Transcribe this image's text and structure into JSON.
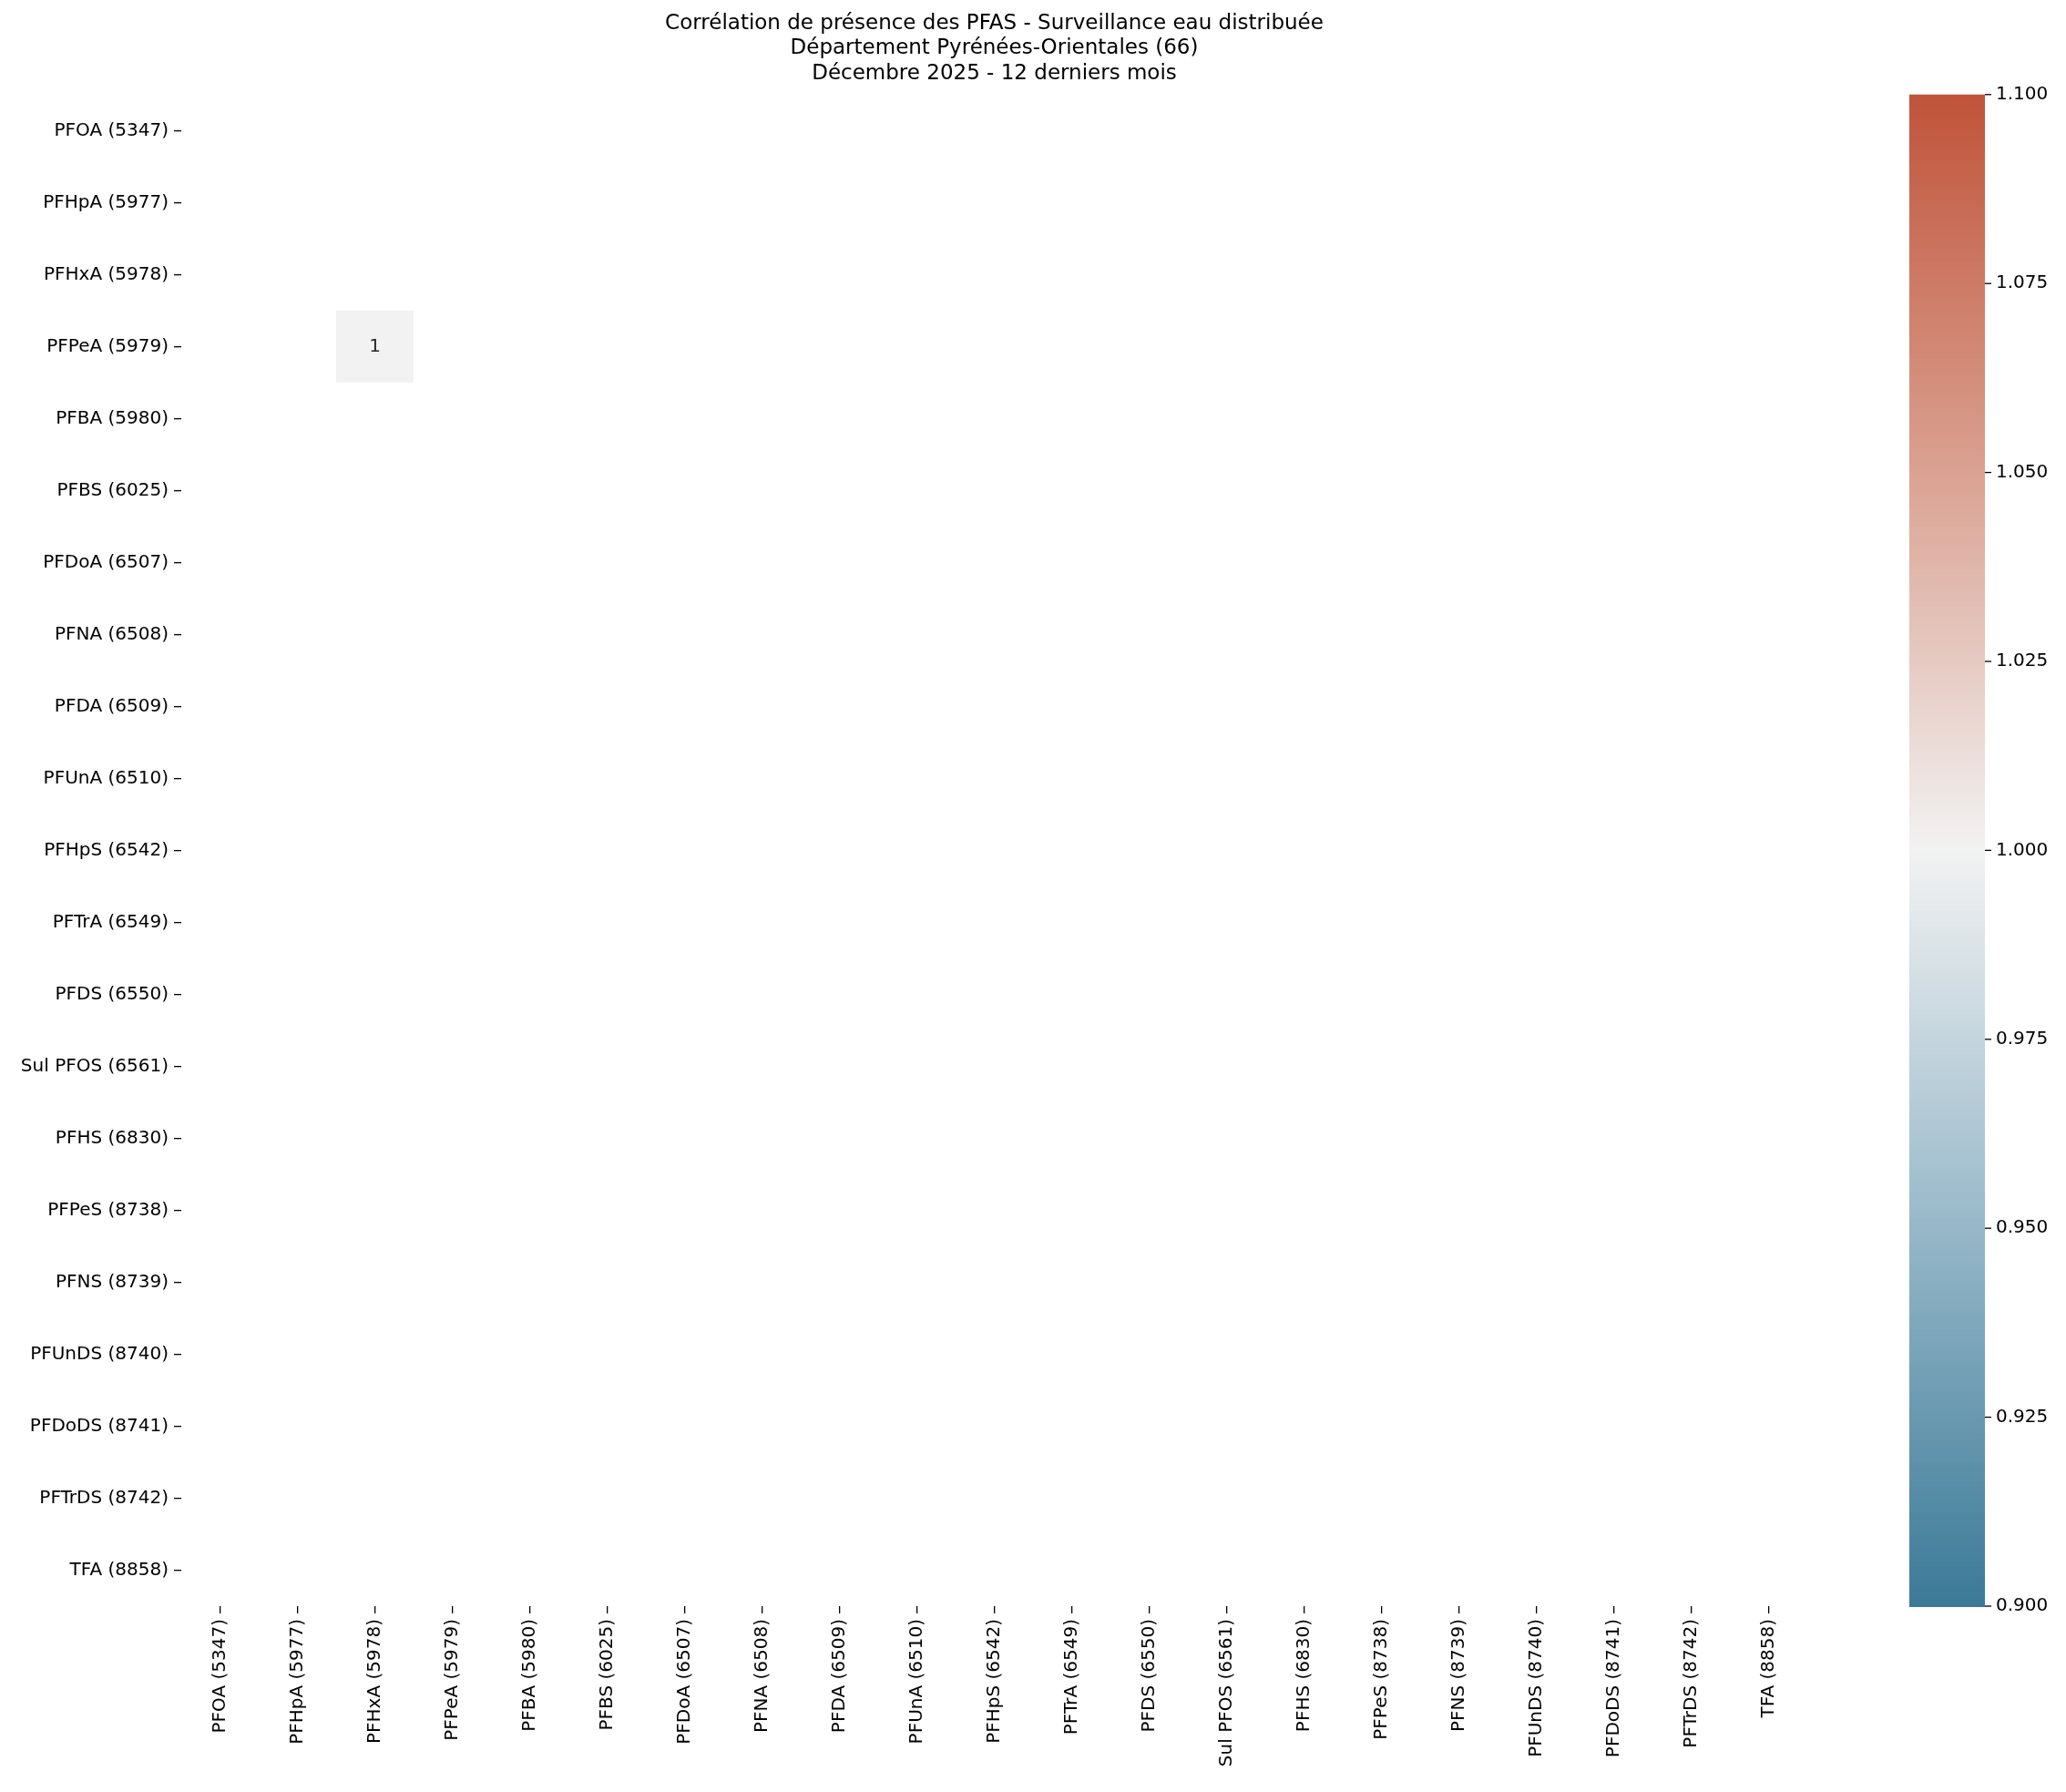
{
  "chart_data": {
    "type": "heatmap",
    "title": "Corrélation de présence des PFAS - Surveillance eau distribuée\nDépartement Pyrénées-Orientales (66)\nDécembre 2025 - 12 derniers mois",
    "categories": [
      "PFOA (5347)",
      "PFHpA (5977)",
      "PFHxA (5978)",
      "PFPeA (5979)",
      "PFBA (5980)",
      "PFBS (6025)",
      "PFDoA (6507)",
      "PFNA (6508)",
      "PFDA (6509)",
      "PFUnA (6510)",
      "PFHpS (6542)",
      "PFTrA (6549)",
      "PFDS (6550)",
      "Sul PFOS (6561)",
      "PFHS (6830)",
      "PFPeS (8738)",
      "PFNS (8739)",
      "PFUnDS (8740)",
      "PFDoDS (8741)",
      "PFTrDS (8742)",
      "TFA (8858)"
    ],
    "y_categories": [
      "PFOA (5347)",
      "PFHpA (5977)",
      "PFHxA (5978)",
      "PFPeA (5979)",
      "PFBA (5980)",
      "PFBS (6025)",
      "PFDoA (6507)",
      "PFNA (6508)",
      "PFDA (6509)",
      "PFUnA (6510)",
      "PFHpS (6542)",
      "PFTrA (6549)",
      "PFDS (6550)",
      "Sul PFOS (6561)",
      "PFHS (6830)",
      "PFPeS (8738)",
      "PFNS (8739)",
      "PFUnDS (8740)",
      "PFDoDS (8741)",
      "PFTrDS (8742)",
      "TFA (8858)"
    ],
    "cells": [
      [
        null,
        null,
        null,
        null,
        null,
        null,
        null,
        null,
        null,
        null,
        null,
        null,
        null,
        null,
        null,
        null,
        null,
        null,
        null,
        null,
        null
      ],
      [
        null,
        null,
        null,
        null,
        null,
        null,
        null,
        null,
        null,
        null,
        null,
        null,
        null,
        null,
        null,
        null,
        null,
        null,
        null,
        null,
        null
      ],
      [
        null,
        null,
        null,
        null,
        null,
        null,
        null,
        null,
        null,
        null,
        null,
        null,
        null,
        null,
        null,
        null,
        null,
        null,
        null,
        null,
        null
      ],
      [
        null,
        null,
        1,
        null,
        null,
        null,
        null,
        null,
        null,
        null,
        null,
        null,
        null,
        null,
        null,
        null,
        null,
        null,
        null,
        null,
        null
      ],
      [
        null,
        null,
        null,
        null,
        null,
        null,
        null,
        null,
        null,
        null,
        null,
        null,
        null,
        null,
        null,
        null,
        null,
        null,
        null,
        null,
        null
      ],
      [
        null,
        null,
        null,
        null,
        null,
        null,
        null,
        null,
        null,
        null,
        null,
        null,
        null,
        null,
        null,
        null,
        null,
        null,
        null,
        null,
        null
      ],
      [
        null,
        null,
        null,
        null,
        null,
        null,
        null,
        null,
        null,
        null,
        null,
        null,
        null,
        null,
        null,
        null,
        null,
        null,
        null,
        null,
        null
      ],
      [
        null,
        null,
        null,
        null,
        null,
        null,
        null,
        null,
        null,
        null,
        null,
        null,
        null,
        null,
        null,
        null,
        null,
        null,
        null,
        null,
        null
      ],
      [
        null,
        null,
        null,
        null,
        null,
        null,
        null,
        null,
        null,
        null,
        null,
        null,
        null,
        null,
        null,
        null,
        null,
        null,
        null,
        null,
        null
      ],
      [
        null,
        null,
        null,
        null,
        null,
        null,
        null,
        null,
        null,
        null,
        null,
        null,
        null,
        null,
        null,
        null,
        null,
        null,
        null,
        null,
        null
      ],
      [
        null,
        null,
        null,
        null,
        null,
        null,
        null,
        null,
        null,
        null,
        null,
        null,
        null,
        null,
        null,
        null,
        null,
        null,
        null,
        null,
        null
      ],
      [
        null,
        null,
        null,
        null,
        null,
        null,
        null,
        null,
        null,
        null,
        null,
        null,
        null,
        null,
        null,
        null,
        null,
        null,
        null,
        null,
        null
      ],
      [
        null,
        null,
        null,
        null,
        null,
        null,
        null,
        null,
        null,
        null,
        null,
        null,
        null,
        null,
        null,
        null,
        null,
        null,
        null,
        null,
        null
      ],
      [
        null,
        null,
        null,
        null,
        null,
        null,
        null,
        null,
        null,
        null,
        null,
        null,
        null,
        null,
        null,
        null,
        null,
        null,
        null,
        null,
        null
      ],
      [
        null,
        null,
        null,
        null,
        null,
        null,
        null,
        null,
        null,
        null,
        null,
        null,
        null,
        null,
        null,
        null,
        null,
        null,
        null,
        null,
        null
      ],
      [
        null,
        null,
        null,
        null,
        null,
        null,
        null,
        null,
        null,
        null,
        null,
        null,
        null,
        null,
        null,
        null,
        null,
        null,
        null,
        null,
        null
      ],
      [
        null,
        null,
        null,
        null,
        null,
        null,
        null,
        null,
        null,
        null,
        null,
        null,
        null,
        null,
        null,
        null,
        null,
        null,
        null,
        null,
        null
      ],
      [
        null,
        null,
        null,
        null,
        null,
        null,
        null,
        null,
        null,
        null,
        null,
        null,
        null,
        null,
        null,
        null,
        null,
        null,
        null,
        null,
        null
      ],
      [
        null,
        null,
        null,
        null,
        null,
        null,
        null,
        null,
        null,
        null,
        null,
        null,
        null,
        null,
        null,
        null,
        null,
        null,
        null,
        null,
        null
      ],
      [
        null,
        null,
        null,
        null,
        null,
        null,
        null,
        null,
        null,
        null,
        null,
        null,
        null,
        null,
        null,
        null,
        null,
        null,
        null,
        null,
        null
      ],
      [
        null,
        null,
        null,
        null,
        null,
        null,
        null,
        null,
        null,
        null,
        null,
        null,
        null,
        null,
        null,
        null,
        null,
        null,
        null,
        null,
        null
      ]
    ],
    "clim": [
      0.9,
      1.1
    ],
    "cticks": [
      {
        "value": 0.9,
        "label": "0.900"
      },
      {
        "value": 0.925,
        "label": "0.925"
      },
      {
        "value": 0.95,
        "label": "0.950"
      },
      {
        "value": 0.975,
        "label": "0.975"
      },
      {
        "value": 1.0,
        "label": "1.000"
      },
      {
        "value": 1.025,
        "label": "1.025"
      },
      {
        "value": 1.05,
        "label": "1.050"
      },
      {
        "value": 1.075,
        "label": "1.075"
      },
      {
        "value": 1.1,
        "label": "1.100"
      }
    ],
    "data_labels": true
  }
}
